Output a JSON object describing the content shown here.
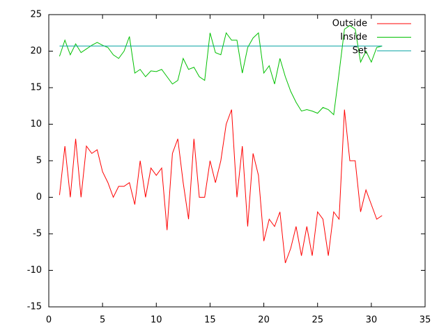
{
  "chart_data": {
    "type": "line",
    "x": [
      1,
      1.5,
      2,
      2.5,
      3,
      3.5,
      4,
      4.5,
      5,
      5.5,
      6,
      6.5,
      7,
      7.5,
      8,
      8.5,
      9,
      9.5,
      10,
      10.5,
      11,
      11.5,
      12,
      12.5,
      13,
      13.5,
      14,
      14.5,
      15,
      15.5,
      16,
      16.5,
      17,
      17.5,
      18,
      18.5,
      19,
      19.5,
      20,
      20.5,
      21,
      21.5,
      22,
      22.5,
      23,
      23.5,
      24,
      24.5,
      25,
      25.5,
      26,
      26.5,
      27,
      27.5,
      28,
      28.5,
      29,
      29.5,
      30,
      30.5,
      31
    ],
    "series": [
      {
        "name": "Outside",
        "color": "#ff0000",
        "values": [
          0.3,
          7,
          0,
          8,
          0,
          7,
          6,
          6.5,
          3.5,
          2,
          0,
          1.5,
          1.5,
          2,
          -1,
          5,
          0,
          4,
          3,
          4,
          -4.5,
          6,
          8,
          2,
          -3,
          8,
          0,
          0,
          5,
          2,
          5,
          10,
          12,
          0,
          7,
          -4,
          6,
          3,
          -6,
          -3,
          -4,
          -2,
          -9,
          -7,
          -4,
          -8,
          -4,
          -8,
          -2,
          -3,
          -8,
          -2,
          -3,
          12,
          5,
          5,
          -2,
          1,
          -1,
          -3,
          -2.5
        ]
      },
      {
        "name": "Inside",
        "color": "#00c000",
        "values": [
          19.3,
          21.5,
          19.5,
          21,
          19.8,
          20.3,
          20.8,
          21.2,
          20.8,
          20.5,
          19.5,
          19,
          20,
          22,
          17,
          17.5,
          16.5,
          17.3,
          17.2,
          17.5,
          16.5,
          15.5,
          16,
          19,
          17.5,
          17.8,
          16.5,
          16,
          22.5,
          19.8,
          19.5,
          22.5,
          21.5,
          21.5,
          17,
          20.5,
          21.8,
          22.5,
          17,
          18,
          15.5,
          19,
          16.5,
          14.5,
          13,
          11.8,
          12,
          11.8,
          11.5,
          12.3,
          12,
          11.3,
          17,
          23,
          23.5,
          23,
          18.5,
          20,
          18.5,
          20.5,
          20.7
        ]
      },
      {
        "name": "Set",
        "color": "#00a0a0",
        "x": [
          1,
          31
        ],
        "values": [
          20.7,
          20.7
        ]
      }
    ],
    "xlim": [
      0,
      35
    ],
    "xticks": [
      0,
      5,
      10,
      15,
      20,
      25,
      30,
      35
    ],
    "ylim": [
      -15,
      25
    ],
    "yticks": [
      -15,
      -10,
      -5,
      0,
      5,
      10,
      15,
      20,
      25
    ],
    "legend": "top-right",
    "grid": false
  }
}
